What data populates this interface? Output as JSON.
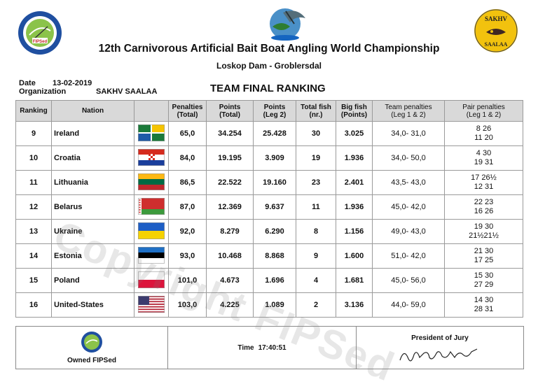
{
  "header": {
    "title": "12th Carnivorous Artificial Bait Boat Angling World Championship",
    "venue": "Loskop Dam - Groblersdal",
    "date_label": "Date",
    "date_value": "13-02-2019",
    "org_label": "Organization",
    "org_value": "SAKHV SAALAA",
    "report_title": "TEAM FINAL RANKING",
    "right_logo_top": "SAKHV",
    "right_logo_bottom": "SAALAA"
  },
  "columns": {
    "ranking": "Ranking",
    "nation": "Nation",
    "penalties": "Penalties",
    "penalties_sub": "(Total)",
    "points_total": "Points",
    "points_total_sub": "(Total)",
    "points_leg": "Points",
    "points_leg_sub": "(Leg 2)",
    "total_fish": "Total fish",
    "total_fish_sub": "(nr.)",
    "big_fish": "Big fish",
    "big_fish_sub": "(Points)",
    "team_penalties": "Team penalties",
    "team_penalties_sub": "(Leg 1 & 2)",
    "pair_penalties": "Pair penalties",
    "pair_penalties_sub": "(Leg 1 & 2)"
  },
  "rows": [
    {
      "rank": "9",
      "nation": "Ireland",
      "flag": "ireland-provinces-flag",
      "penalties": "65,0",
      "points_total": "34.254",
      "points_leg2": "25.428",
      "total_fish": "30",
      "big_fish": "3.025",
      "team_penalties": "34,0- 31,0",
      "pair_line1": "8 26",
      "pair_line2": "11 20"
    },
    {
      "rank": "10",
      "nation": "Croatia",
      "flag": "croatia-flag",
      "penalties": "84,0",
      "points_total": "19.195",
      "points_leg2": "3.909",
      "total_fish": "19",
      "big_fish": "1.936",
      "team_penalties": "34,0- 50,0",
      "pair_line1": "4 30",
      "pair_line2": "19 31"
    },
    {
      "rank": "11",
      "nation": "Lithuania",
      "flag": "lithuania-flag",
      "penalties": "86,5",
      "points_total": "22.522",
      "points_leg2": "19.160",
      "total_fish": "23",
      "big_fish": "2.401",
      "team_penalties": "43,5- 43,0",
      "pair_line1": "17 26½",
      "pair_line2": "12 31"
    },
    {
      "rank": "12",
      "nation": "Belarus",
      "flag": "belarus-flag",
      "penalties": "87,0",
      "points_total": "12.369",
      "points_leg2": "9.637",
      "total_fish": "11",
      "big_fish": "1.936",
      "team_penalties": "45,0- 42,0",
      "pair_line1": "22 23",
      "pair_line2": "16 26"
    },
    {
      "rank": "13",
      "nation": "Ukraine",
      "flag": "ukraine-flag",
      "penalties": "92,0",
      "points_total": "8.279",
      "points_leg2": "6.290",
      "total_fish": "8",
      "big_fish": "1.156",
      "team_penalties": "49,0- 43,0",
      "pair_line1": "19 30",
      "pair_line2": "21½21½"
    },
    {
      "rank": "14",
      "nation": "Estonia",
      "flag": "estonia-flag",
      "penalties": "93,0",
      "points_total": "10.468",
      "points_leg2": "8.868",
      "total_fish": "9",
      "big_fish": "1.600",
      "team_penalties": "51,0- 42,0",
      "pair_line1": "21 30",
      "pair_line2": "17 25"
    },
    {
      "rank": "15",
      "nation": "Poland",
      "flag": "poland-flag",
      "penalties": "101,0",
      "points_total": "4.673",
      "points_leg2": "1.696",
      "total_fish": "4",
      "big_fish": "1.681",
      "team_penalties": "45,0- 56,0",
      "pair_line1": "15 30",
      "pair_line2": "27 29"
    },
    {
      "rank": "16",
      "nation": "United-States",
      "flag": "usa-flag",
      "penalties": "103,0",
      "points_total": "4.225",
      "points_leg2": "1.089",
      "total_fish": "2",
      "big_fish": "3.136",
      "team_penalties": "44,0- 59,0",
      "pair_line1": "14 30",
      "pair_line2": "28 31"
    }
  ],
  "watermark": "Copyright FIPSed",
  "footer": {
    "owned_label": "Owned FIPSed",
    "time_label": "Time",
    "time_value": "17:40:51",
    "jury_label": "President of Jury"
  },
  "colors": {
    "header_bg": "#d9d9d9",
    "border": "#9a9a9a",
    "fipsed_blue": "#1f4fa0",
    "sakhv_yellow": "#f2c20e"
  }
}
